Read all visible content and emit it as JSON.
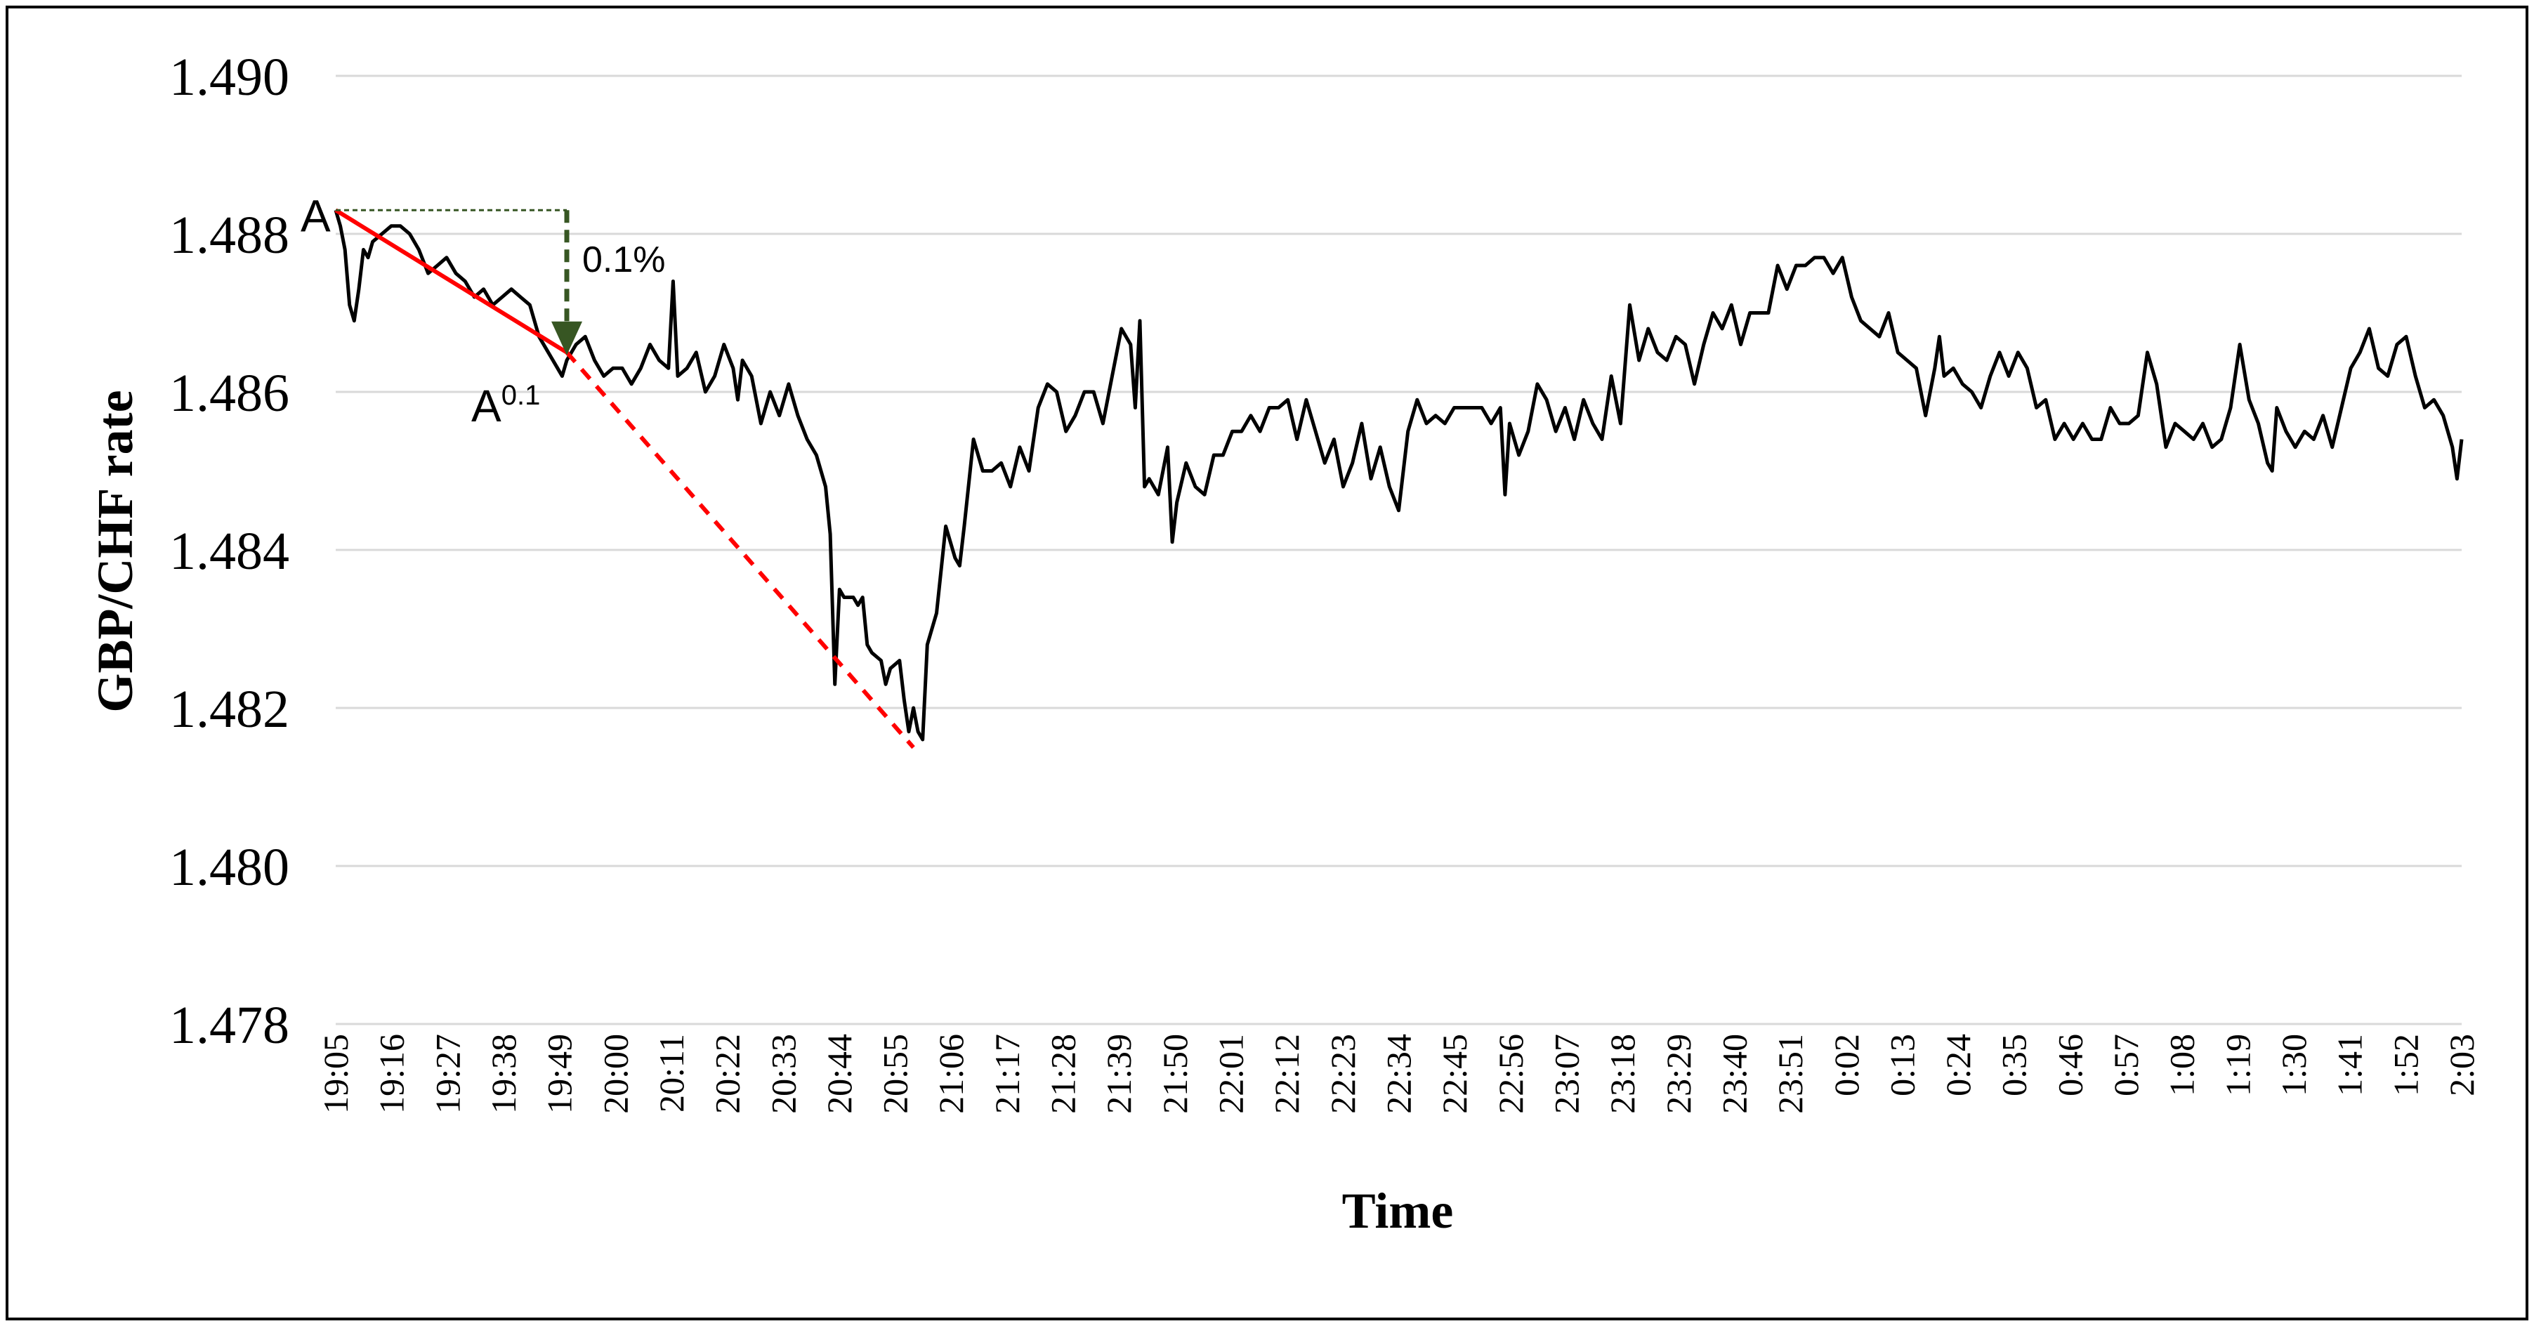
{
  "chart_data": {
    "type": "line",
    "xlabel": "Time",
    "ylabel": "GBP/CHF rate",
    "ylim": [
      1.478,
      1.49
    ],
    "yticks": [
      "1.490",
      "1.488",
      "1.486",
      "1.484",
      "1.482",
      "1.480",
      "1.478"
    ],
    "xticks": [
      "19:05",
      "19:16",
      "19:27",
      "19:38",
      "19:49",
      "20:00",
      "20:11",
      "20:22",
      "20:33",
      "20:44",
      "20:55",
      "21:06",
      "21:17",
      "21:28",
      "21:39",
      "21:50",
      "22:01",
      "22:12",
      "22:23",
      "22:34",
      "22:45",
      "22:56",
      "23:07",
      "23:18",
      "23:29",
      "23:40",
      "23:51",
      "0:02",
      "0:13",
      "0:24",
      "0:35",
      "0:46",
      "0:57",
      "1:08",
      "1:19",
      "1:30",
      "1:41",
      "1:52",
      "2:03"
    ],
    "grid": true,
    "legend": "none",
    "series": [
      {
        "color": "#000000",
        "points": [
          [
            0.0,
            1.4883
          ],
          [
            0.5,
            1.4881
          ],
          [
            1.0,
            1.4878
          ],
          [
            1.5,
            1.4871
          ],
          [
            2.0,
            1.4869
          ],
          [
            2.5,
            1.4873
          ],
          [
            3.0,
            1.4878
          ],
          [
            3.5,
            1.4877
          ],
          [
            4.0,
            1.4879
          ],
          [
            5.0,
            1.488
          ],
          [
            6.0,
            1.4881
          ],
          [
            7.0,
            1.4881
          ],
          [
            8.0,
            1.488
          ],
          [
            9.0,
            1.4878
          ],
          [
            10.0,
            1.4875
          ],
          [
            11.0,
            1.4876
          ],
          [
            12.0,
            1.4877
          ],
          [
            13.0,
            1.4875
          ],
          [
            14.0,
            1.4874
          ],
          [
            15.0,
            1.4872
          ],
          [
            16.0,
            1.4873
          ],
          [
            17.0,
            1.4871
          ],
          [
            18.0,
            1.4872
          ],
          [
            19.0,
            1.4873
          ],
          [
            20.0,
            1.4872
          ],
          [
            21.0,
            1.4871
          ],
          [
            22.0,
            1.4867
          ],
          [
            23.0,
            1.4865
          ],
          [
            24.0,
            1.4863
          ],
          [
            24.5,
            1.4862
          ],
          [
            25.0,
            1.4864
          ],
          [
            26.0,
            1.4866
          ],
          [
            27.0,
            1.4867
          ],
          [
            28.0,
            1.4864
          ],
          [
            29.0,
            1.4862
          ],
          [
            30.0,
            1.4863
          ],
          [
            31.0,
            1.4863
          ],
          [
            32.0,
            1.4861
          ],
          [
            33.0,
            1.4863
          ],
          [
            34.0,
            1.4866
          ],
          [
            35.0,
            1.4864
          ],
          [
            36.0,
            1.4863
          ],
          [
            36.5,
            1.4874
          ],
          [
            37.0,
            1.4862
          ],
          [
            38.0,
            1.4863
          ],
          [
            39.0,
            1.4865
          ],
          [
            40.0,
            1.486
          ],
          [
            41.0,
            1.4862
          ],
          [
            42.0,
            1.4866
          ],
          [
            43.0,
            1.4863
          ],
          [
            43.5,
            1.4859
          ],
          [
            44.0,
            1.4864
          ],
          [
            45.0,
            1.4862
          ],
          [
            46.0,
            1.4856
          ],
          [
            47.0,
            1.486
          ],
          [
            48.0,
            1.4857
          ],
          [
            49.0,
            1.4861
          ],
          [
            50.0,
            1.4857
          ],
          [
            51.0,
            1.4854
          ],
          [
            52.0,
            1.4852
          ],
          [
            53.0,
            1.4848
          ],
          [
            53.5,
            1.4842
          ],
          [
            54.0,
            1.4823
          ],
          [
            54.5,
            1.4835
          ],
          [
            55.0,
            1.4834
          ],
          [
            56.0,
            1.4834
          ],
          [
            56.5,
            1.4833
          ],
          [
            57.0,
            1.4834
          ],
          [
            57.5,
            1.4828
          ],
          [
            58.0,
            1.4827
          ],
          [
            59.0,
            1.4826
          ],
          [
            59.5,
            1.4823
          ],
          [
            60.0,
            1.4825
          ],
          [
            61.0,
            1.4826
          ],
          [
            61.5,
            1.4821
          ],
          [
            62.0,
            1.4817
          ],
          [
            62.5,
            1.482
          ],
          [
            63.0,
            1.4817
          ],
          [
            63.5,
            1.4816
          ],
          [
            64.0,
            1.4828
          ],
          [
            65.0,
            1.4832
          ],
          [
            66.0,
            1.4843
          ],
          [
            67.0,
            1.4839
          ],
          [
            67.5,
            1.4838
          ],
          [
            68.0,
            1.4843
          ],
          [
            69.0,
            1.4854
          ],
          [
            70.0,
            1.485
          ],
          [
            71.0,
            1.485
          ],
          [
            72.0,
            1.4851
          ],
          [
            73.0,
            1.4848
          ],
          [
            74.0,
            1.4853
          ],
          [
            75.0,
            1.485
          ],
          [
            76.0,
            1.4858
          ],
          [
            77.0,
            1.4861
          ],
          [
            78.0,
            1.486
          ],
          [
            79.0,
            1.4855
          ],
          [
            80.0,
            1.4857
          ],
          [
            81.0,
            1.486
          ],
          [
            82.0,
            1.486
          ],
          [
            83.0,
            1.4856
          ],
          [
            84.0,
            1.4862
          ],
          [
            85.0,
            1.4868
          ],
          [
            86.0,
            1.4866
          ],
          [
            86.5,
            1.4858
          ],
          [
            87.0,
            1.4869
          ],
          [
            87.5,
            1.4848
          ],
          [
            88.0,
            1.4849
          ],
          [
            89.0,
            1.4847
          ],
          [
            90.0,
            1.4853
          ],
          [
            90.5,
            1.4841
          ],
          [
            91.0,
            1.4846
          ],
          [
            92.0,
            1.4851
          ],
          [
            93.0,
            1.4848
          ],
          [
            94.0,
            1.4847
          ],
          [
            95.0,
            1.4852
          ],
          [
            96.0,
            1.4852
          ],
          [
            97.0,
            1.4855
          ],
          [
            98.0,
            1.4855
          ],
          [
            99.0,
            1.4857
          ],
          [
            100.0,
            1.4855
          ],
          [
            101.0,
            1.4858
          ],
          [
            102.0,
            1.4858
          ],
          [
            103.0,
            1.4859
          ],
          [
            104.0,
            1.4854
          ],
          [
            105.0,
            1.4859
          ],
          [
            106.0,
            1.4855
          ],
          [
            107.0,
            1.4851
          ],
          [
            108.0,
            1.4854
          ],
          [
            109.0,
            1.4848
          ],
          [
            110.0,
            1.4851
          ],
          [
            111.0,
            1.4856
          ],
          [
            112.0,
            1.4849
          ],
          [
            113.0,
            1.4853
          ],
          [
            114.0,
            1.4848
          ],
          [
            115.0,
            1.4845
          ],
          [
            116.0,
            1.4855
          ],
          [
            117.0,
            1.4859
          ],
          [
            118.0,
            1.4856
          ],
          [
            119.0,
            1.4857
          ],
          [
            120.0,
            1.4856
          ],
          [
            121.0,
            1.4858
          ],
          [
            122.0,
            1.4858
          ],
          [
            123.0,
            1.4858
          ],
          [
            124.0,
            1.4858
          ],
          [
            125.0,
            1.4856
          ],
          [
            126.0,
            1.4858
          ],
          [
            126.5,
            1.4847
          ],
          [
            127.0,
            1.4856
          ],
          [
            128.0,
            1.4852
          ],
          [
            129.0,
            1.4855
          ],
          [
            130.0,
            1.4861
          ],
          [
            131.0,
            1.4859
          ],
          [
            132.0,
            1.4855
          ],
          [
            133.0,
            1.4858
          ],
          [
            134.0,
            1.4854
          ],
          [
            135.0,
            1.4859
          ],
          [
            136.0,
            1.4856
          ],
          [
            137.0,
            1.4854
          ],
          [
            138.0,
            1.4862
          ],
          [
            139.0,
            1.4856
          ],
          [
            140.0,
            1.4871
          ],
          [
            141.0,
            1.4864
          ],
          [
            142.0,
            1.4868
          ],
          [
            143.0,
            1.4865
          ],
          [
            144.0,
            1.4864
          ],
          [
            145.0,
            1.4867
          ],
          [
            146.0,
            1.4866
          ],
          [
            147.0,
            1.4861
          ],
          [
            148.0,
            1.4866
          ],
          [
            149.0,
            1.487
          ],
          [
            150.0,
            1.4868
          ],
          [
            151.0,
            1.4871
          ],
          [
            152.0,
            1.4866
          ],
          [
            153.0,
            1.487
          ],
          [
            154.0,
            1.487
          ],
          [
            155.0,
            1.487
          ],
          [
            156.0,
            1.4876
          ],
          [
            157.0,
            1.4873
          ],
          [
            158.0,
            1.4876
          ],
          [
            159.0,
            1.4876
          ],
          [
            160.0,
            1.4877
          ],
          [
            161.0,
            1.4877
          ],
          [
            162.0,
            1.4875
          ],
          [
            163.0,
            1.4877
          ],
          [
            164.0,
            1.4872
          ],
          [
            165.0,
            1.4869
          ],
          [
            166.0,
            1.4868
          ],
          [
            167.0,
            1.4867
          ],
          [
            168.0,
            1.487
          ],
          [
            169.0,
            1.4865
          ],
          [
            170.0,
            1.4864
          ],
          [
            171.0,
            1.4863
          ],
          [
            172.0,
            1.4857
          ],
          [
            173.0,
            1.4863
          ],
          [
            173.5,
            1.4867
          ],
          [
            174.0,
            1.4862
          ],
          [
            175.0,
            1.4863
          ],
          [
            176.0,
            1.4861
          ],
          [
            177.0,
            1.486
          ],
          [
            178.0,
            1.4858
          ],
          [
            179.0,
            1.4862
          ],
          [
            180.0,
            1.4865
          ],
          [
            181.0,
            1.4862
          ],
          [
            182.0,
            1.4865
          ],
          [
            183.0,
            1.4863
          ],
          [
            184.0,
            1.4858
          ],
          [
            185.0,
            1.4859
          ],
          [
            186.0,
            1.4854
          ],
          [
            187.0,
            1.4856
          ],
          [
            188.0,
            1.4854
          ],
          [
            189.0,
            1.4856
          ],
          [
            190.0,
            1.4854
          ],
          [
            191.0,
            1.4854
          ],
          [
            192.0,
            1.4858
          ],
          [
            193.0,
            1.4856
          ],
          [
            194.0,
            1.4856
          ],
          [
            195.0,
            1.4857
          ],
          [
            196.0,
            1.4865
          ],
          [
            197.0,
            1.4861
          ],
          [
            198.0,
            1.4853
          ],
          [
            199.0,
            1.4856
          ],
          [
            200.0,
            1.4855
          ],
          [
            201.0,
            1.4854
          ],
          [
            202.0,
            1.4856
          ],
          [
            203.0,
            1.4853
          ],
          [
            204.0,
            1.4854
          ],
          [
            205.0,
            1.4858
          ],
          [
            206.0,
            1.4866
          ],
          [
            207.0,
            1.4859
          ],
          [
            208.0,
            1.4856
          ],
          [
            209.0,
            1.4851
          ],
          [
            209.5,
            1.485
          ],
          [
            210.0,
            1.4858
          ],
          [
            211.0,
            1.4855
          ],
          [
            212.0,
            1.4853
          ],
          [
            213.0,
            1.4855
          ],
          [
            214.0,
            1.4854
          ],
          [
            215.0,
            1.4857
          ],
          [
            216.0,
            1.4853
          ],
          [
            217.0,
            1.4858
          ],
          [
            218.0,
            1.4863
          ],
          [
            219.0,
            1.4865
          ],
          [
            220.0,
            1.4868
          ],
          [
            221.0,
            1.4863
          ],
          [
            222.0,
            1.4862
          ],
          [
            223.0,
            1.4866
          ],
          [
            224.0,
            1.4867
          ],
          [
            225.0,
            1.4862
          ],
          [
            226.0,
            1.4858
          ],
          [
            227.0,
            1.4859
          ],
          [
            228.0,
            1.4857
          ],
          [
            229.0,
            1.4853
          ],
          [
            229.5,
            1.4849
          ],
          [
            230.0,
            1.4854
          ]
        ]
      }
    ],
    "trend_segments": [
      {
        "style": "solid",
        "color": "#ff0000",
        "from": [
          0,
          1.4883
        ],
        "to": [
          25,
          1.4865
        ]
      },
      {
        "style": "dashed",
        "color": "#ff0000",
        "from": [
          25,
          1.4865
        ],
        "to": [
          62.5,
          1.4815
        ]
      }
    ],
    "annotations": [
      {
        "text": "A",
        "at": [
          0,
          1.4883
        ]
      },
      {
        "text": "A",
        "superscript": "0.1",
        "at": [
          25,
          1.4865
        ]
      },
      {
        "text": "0.1%",
        "color": "#375623",
        "marker": "dashed-drop-arrow",
        "from": [
          0,
          1.4883
        ],
        "corner": [
          25,
          1.4883
        ],
        "to": [
          25,
          1.4865
        ]
      }
    ]
  }
}
